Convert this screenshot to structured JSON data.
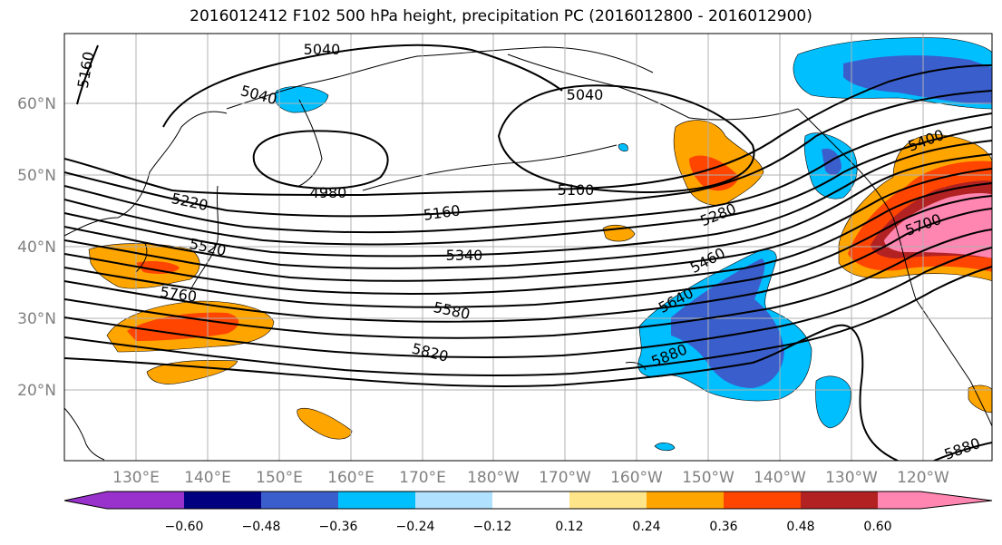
{
  "title": "2016012412 F102 500 hPa height, precipitation PC (2016012800 - 2016012900)",
  "axes": {
    "lon_ticks": [
      "130°E",
      "140°E",
      "150°E",
      "160°E",
      "170°E",
      "180°W",
      "170°W",
      "160°W",
      "150°W",
      "140°W",
      "130°W",
      "120°W"
    ],
    "lat_ticks": [
      "20°N",
      "30°N",
      "40°N",
      "50°N",
      "60°N"
    ],
    "grid": true
  },
  "contour_labels": [
    "5160",
    "5040",
    "5040",
    "5040",
    "4980",
    "5100",
    "5160",
    "5220",
    "5280",
    "5400",
    "5340",
    "5520",
    "5460",
    "5640",
    "5580",
    "5700",
    "5760",
    "5820",
    "5880",
    "5880"
  ],
  "colorbar": {
    "ticks": [
      "−0.60",
      "−0.48",
      "−0.36",
      "−0.24",
      "−0.12",
      "0.12",
      "0.24",
      "0.36",
      "0.48",
      "0.60"
    ],
    "colors": [
      "#9932CC",
      "#000080",
      "#3A5FCD",
      "#00BFFF",
      "#B0E2FF",
      "#FFFFFF",
      "#FFE58A",
      "#FFA500",
      "#FF4500",
      "#B22222",
      "#FF86B0"
    ]
  }
}
